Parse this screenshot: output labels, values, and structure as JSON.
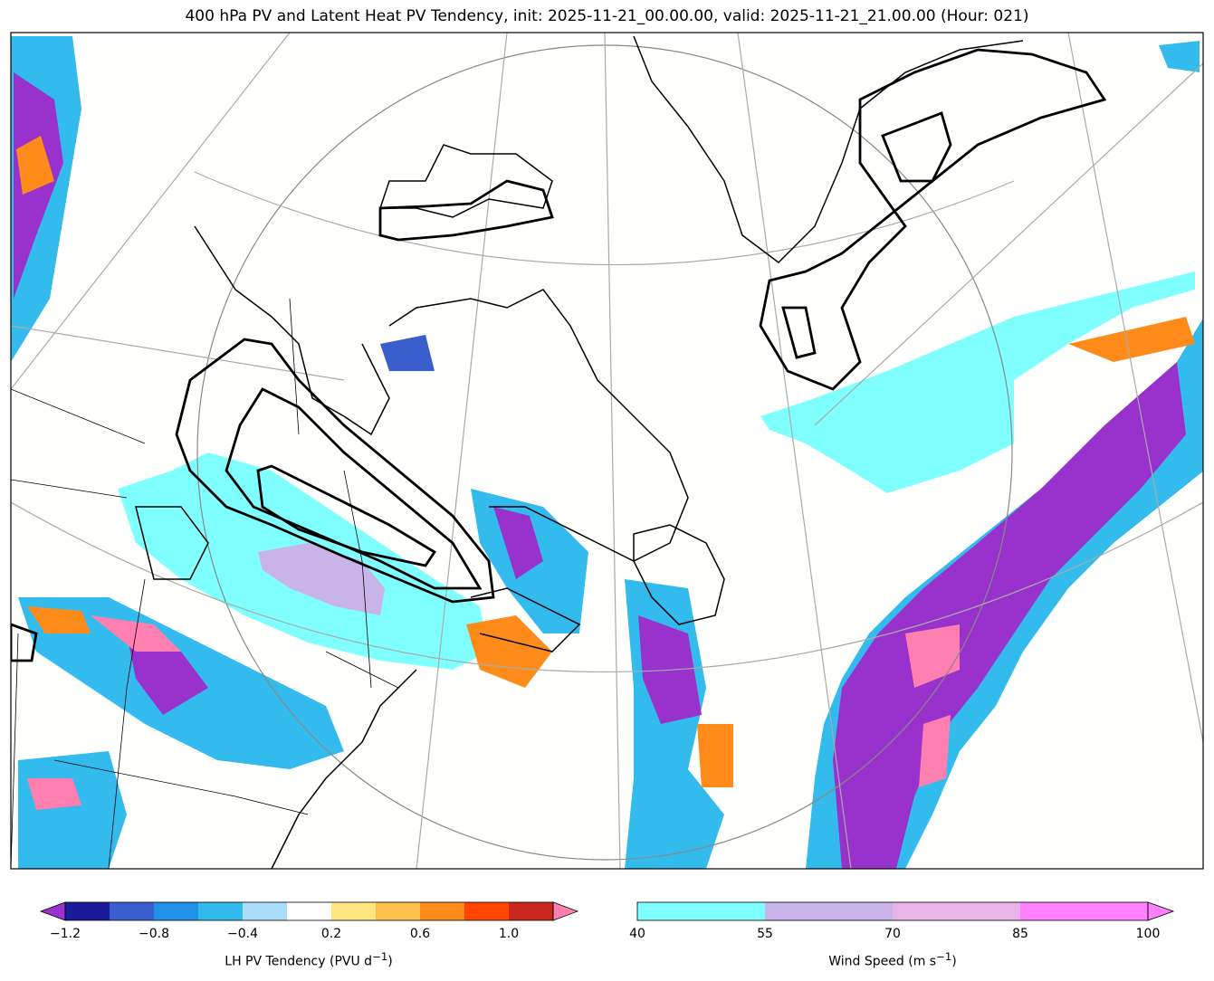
{
  "title": "400 hPa PV and Latent Heat PV Tendency, init: 2025-11-21_00.00.00, valid: 2025-11-21_21.00.00 (Hour: 021)",
  "colorbars": {
    "lh": {
      "label_main": "LH PV Tendency (PVU d",
      "label_sup": "−1",
      "label_end": ")",
      "ticks": [
        "−1.2",
        "−0.8",
        "−0.4",
        "0.2",
        "0.6",
        "1.0"
      ],
      "colors": [
        "#1a1a9a",
        "#3a5fcd",
        "#1e90e6",
        "#33bbee",
        "#aaddfa",
        "#ffffff",
        "#ffe680",
        "#ffc04d",
        "#ff8c1a",
        "#ff4500",
        "#c8281e"
      ],
      "under_color": "#9932cc",
      "over_color": "#ff80b0"
    },
    "wind": {
      "label_main": "Wind Speed (m s",
      "label_sup": "−1",
      "label_end": ")",
      "ticks": [
        "40",
        "55",
        "70",
        "85",
        "100"
      ],
      "colors": [
        "#80ffff",
        "#c8b4e8",
        "#e6b4e6",
        "#ff80ff"
      ]
    }
  }
}
